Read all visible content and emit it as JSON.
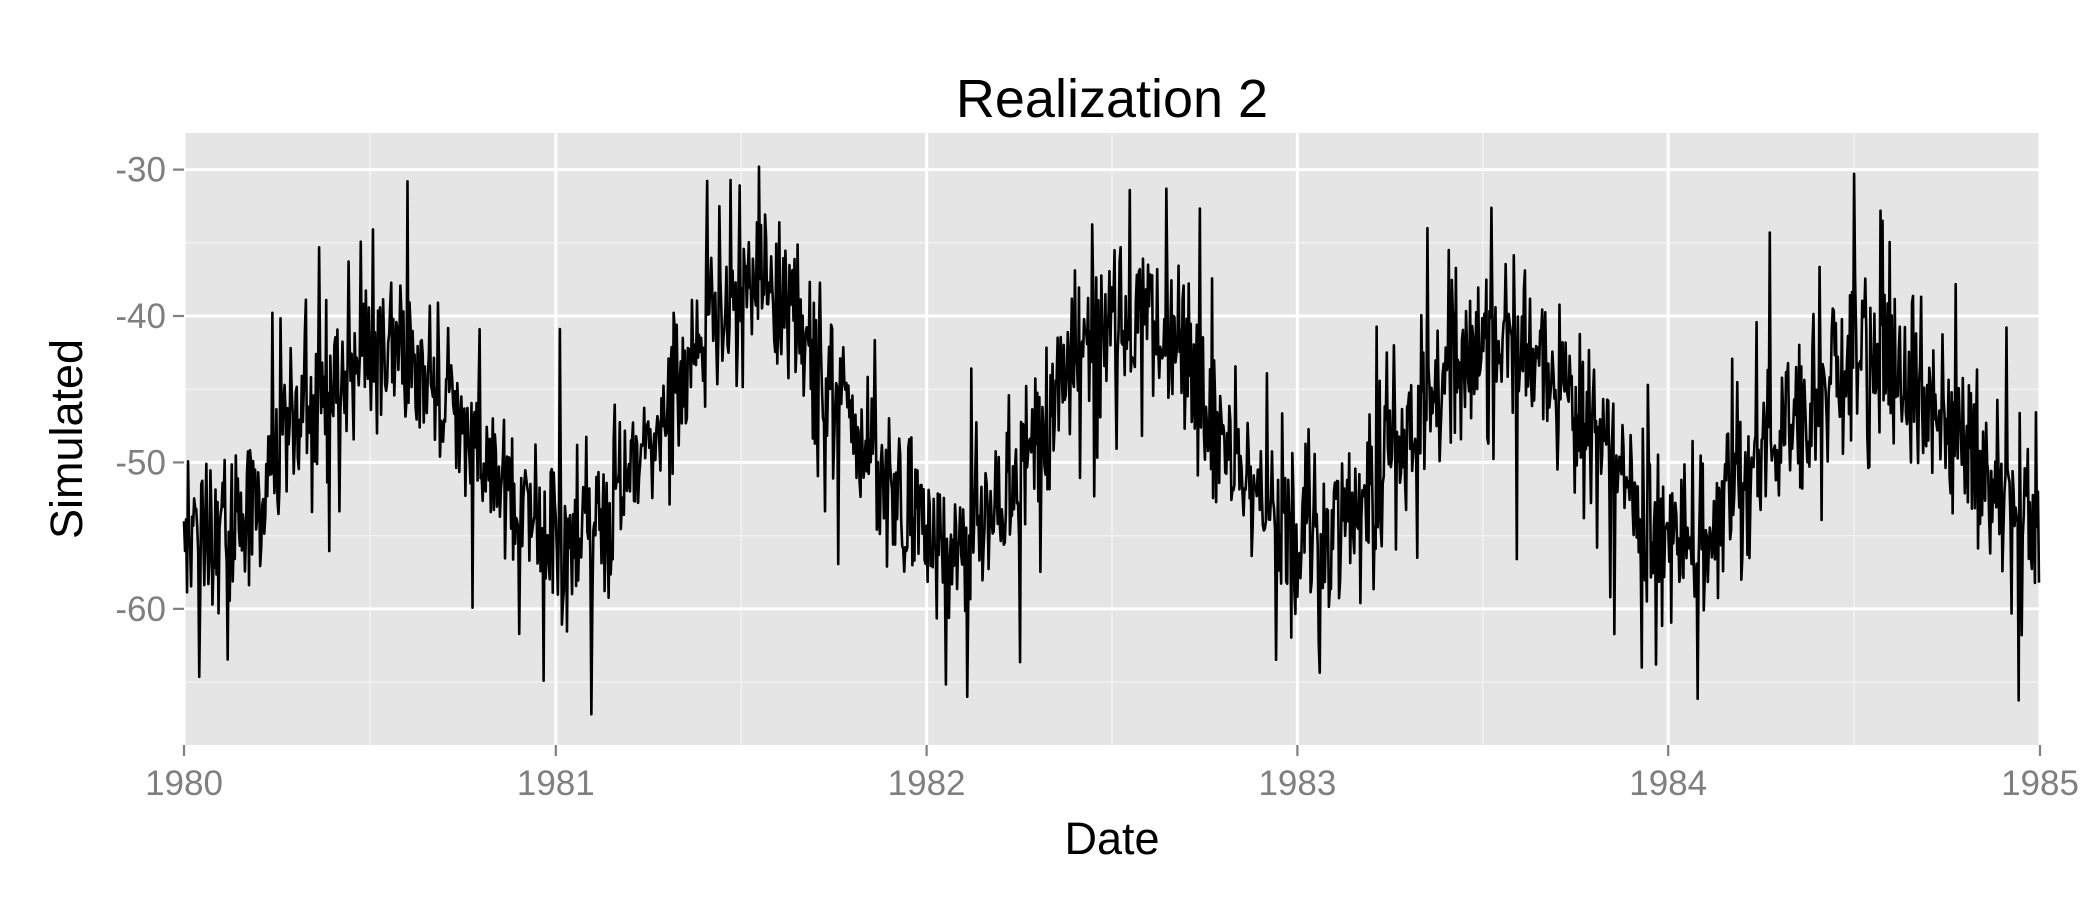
{
  "chart_data": {
    "type": "line",
    "title": "Realization 2",
    "xlabel": "Date",
    "ylabel": "Simulated",
    "x_ticks": [
      "1980",
      "1981",
      "1982",
      "1983",
      "1984",
      "1985"
    ],
    "y_ticks": [
      "-30",
      "-40",
      "-50",
      "-60"
    ],
    "xlim": [
      "1980-01-01",
      "1985-01-01"
    ],
    "ylim": [
      -69.3,
      -27.5
    ],
    "grid": true,
    "legend": "none",
    "colors": {
      "panel": "#e5e5e5",
      "grid": "#ffffff",
      "line": "#000000",
      "ticks": "#7f7f7f"
    },
    "series": [
      {
        "frequency": "daily",
        "start": "1980-01-01",
        "end": "1984-12-31",
        "seasonal_pattern": {
          "summer_peak_values": [
            -42,
            -38,
            -40,
            -41,
            -43
          ],
          "winter_trough_values": [
            -55,
            -55,
            -56,
            -55,
            -55,
            -55
          ]
        },
        "notable_points": [
          {
            "x": "1980-08-08",
            "y": -30.8
          },
          {
            "x": "1981-07-20",
            "y": -29.8
          },
          {
            "x": "1980-12-20",
            "y": -64.9
          },
          {
            "x": "1981-02-05",
            "y": -67.2
          },
          {
            "x": "1982-02-10",
            "y": -66.0
          },
          {
            "x": "1982-07-20",
            "y": -31.4
          },
          {
            "x": "1982-08-25",
            "y": -31.3
          },
          {
            "x": "1983-08-05",
            "y": -56.6
          },
          {
            "x": "1983-12-20",
            "y": -63.8
          },
          {
            "x": "1984-04-10",
            "y": -34.3
          },
          {
            "x": "1984-07-30",
            "y": -33.5
          }
        ]
      }
    ]
  }
}
